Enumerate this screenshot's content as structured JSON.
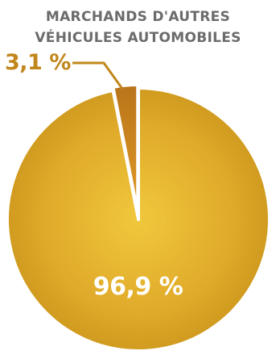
{
  "chart_data": {
    "type": "pie",
    "title_lines": [
      "MARCHANDS D'AUTRES",
      "VÉHICULES AUTOMOBILES"
    ],
    "slices": [
      {
        "label": "3,1 %",
        "value": 3.1,
        "color": "#d38c1e"
      },
      {
        "label": "96,9 %",
        "value": 96.9,
        "color": "#e2ac2a"
      }
    ],
    "colors": {
      "title": "#6b6b6b",
      "callout": "#c1871c",
      "slice_edge": "#ffffff"
    }
  }
}
